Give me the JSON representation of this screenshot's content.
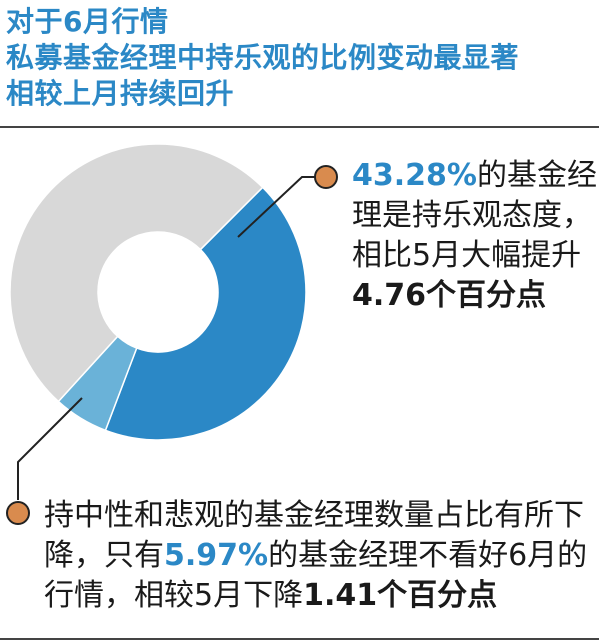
{
  "header": {
    "title_lines": [
      "对于6月行情",
      "私募基金经理中持乐观的比例变动最显著",
      "相较上月持续回升"
    ]
  },
  "chart_data": {
    "type": "pie",
    "style": "donut",
    "slices": [
      {
        "value": 43.28,
        "color": "#2b88c6"
      },
      {
        "value": 5.97,
        "color": "#6ab2d8"
      },
      {
        "value": 50.75,
        "color": "#d8d8d8"
      }
    ]
  },
  "callouts": {
    "optimistic": {
      "value": "43.28%",
      "text1": "的基金经理是持乐观态度，相比5月大幅提升",
      "change": "4.76个百分点"
    },
    "pessimistic": {
      "text1": "持中性和悲观的基金经理数量占比有所下降，只有",
      "value": "5.97%",
      "text2": "的基金经理不看好6月的行情，相较5月下降",
      "change": "1.41个百分点"
    }
  },
  "colors": {
    "accent": "#2b88c6",
    "marker": "#d98b4e",
    "neutral": "#d8d8d8",
    "light_blue": "#6ab2d8"
  }
}
